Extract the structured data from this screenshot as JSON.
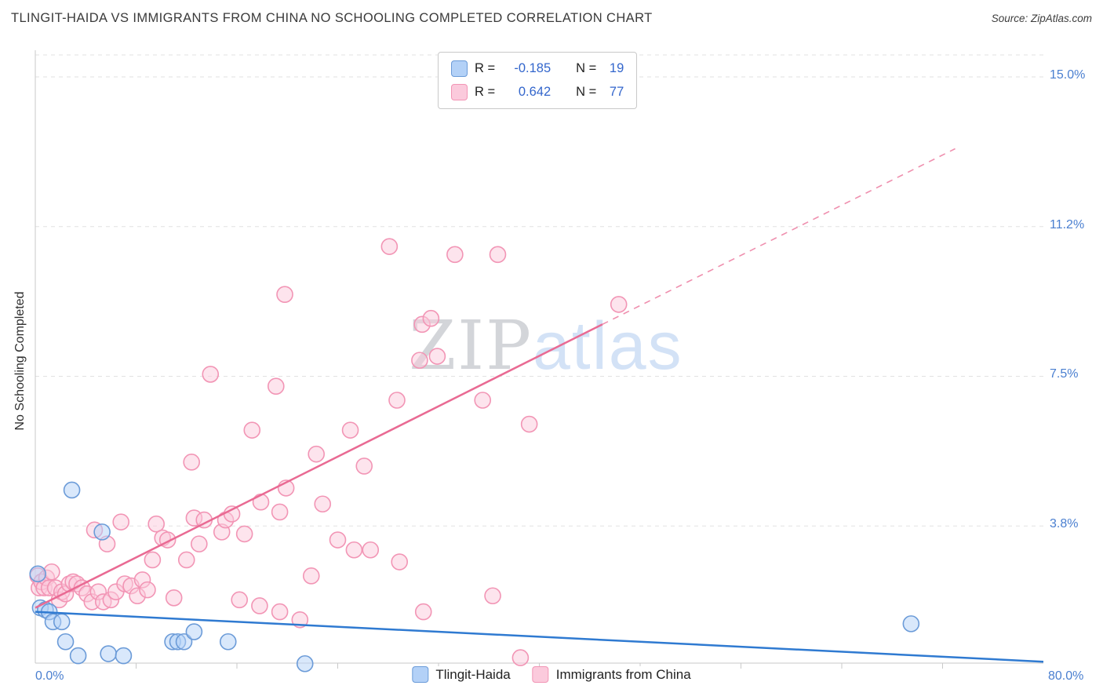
{
  "header": {
    "title": "TLINGIT-HAIDA VS IMMIGRANTS FROM CHINA NO SCHOOLING COMPLETED CORRELATION CHART",
    "source": "Source: ZipAtlas.com"
  },
  "watermark": {
    "zip": "ZIP",
    "atlas": "atlas"
  },
  "y_axis_label": "No Schooling Completed",
  "x_axis": {
    "min_label": "0.0%",
    "max_label": "80.0%"
  },
  "legend_box": {
    "rows": [
      {
        "r_label": "R =",
        "r_value": "-0.185",
        "n_label": "N =",
        "n_value": "19"
      },
      {
        "r_label": "R =",
        "r_value": "0.642",
        "n_label": "N =",
        "n_value": "77"
      }
    ]
  },
  "bottom_legend": {
    "items": [
      {
        "label": "Tlingit-Haida"
      },
      {
        "label": "Immigrants from China"
      }
    ]
  },
  "colors": {
    "accent_text": "#3366cc",
    "axis_tick_label": "#4a7fd0",
    "gridline": "#e2e2e2",
    "axis_line": "#c9c9c9",
    "blue_fill": "#b3d1f7",
    "blue_stroke": "#6b9bd8",
    "pink_fill": "#fbcadc",
    "pink_stroke": "#f295b5",
    "blue_trend": "#2f7ad1",
    "pink_trend": "#e96a93"
  },
  "chart_data": {
    "type": "scatter",
    "title": "TLINGIT-HAIDA VS IMMIGRANTS FROM CHINA NO SCHOOLING COMPLETED CORRELATION CHART",
    "ylabel": "No Schooling Completed",
    "xlim": [
      0,
      80
    ],
    "ylim": [
      0,
      15.5
    ],
    "x_tick_step_pct": 8,
    "grid": "horizontal-dashed",
    "legend_position": "bottom-center",
    "y_gridlines": [
      {
        "pct": 3.75,
        "label": "3.8%"
      },
      {
        "pct": 7.5,
        "label": "7.5%"
      },
      {
        "pct": 11.25,
        "label": "11.2%"
      },
      {
        "pct": 15.0,
        "label": "15.0%"
      }
    ],
    "series": [
      {
        "name": "Tlingit-Haida",
        "R": -0.185,
        "N": 19,
        "fill": "#b3d1f7",
        "stroke": "#6b9bd8",
        "points": [
          [
            0.2,
            2.55
          ],
          [
            0.4,
            1.7
          ],
          [
            0.8,
            1.65
          ],
          [
            1.1,
            1.6
          ],
          [
            1.4,
            1.35
          ],
          [
            2.1,
            1.35
          ],
          [
            2.4,
            0.85
          ],
          [
            2.9,
            4.65
          ],
          [
            3.4,
            0.5
          ],
          [
            5.3,
            3.6
          ],
          [
            5.8,
            0.55
          ],
          [
            7.0,
            0.5
          ],
          [
            10.9,
            0.85
          ],
          [
            11.3,
            0.85
          ],
          [
            11.8,
            0.85
          ],
          [
            12.6,
            1.1
          ],
          [
            15.3,
            0.85
          ],
          [
            21.4,
            0.3
          ],
          [
            69.5,
            1.3
          ]
        ]
      },
      {
        "name": "Immigrants from China",
        "R": 0.642,
        "N": 77,
        "fill": "#fbcadc",
        "stroke": "#f295b5",
        "points": [
          [
            0.2,
            2.5
          ],
          [
            0.3,
            2.2
          ],
          [
            0.5,
            2.35
          ],
          [
            0.7,
            2.2
          ],
          [
            0.9,
            2.45
          ],
          [
            1.1,
            2.2
          ],
          [
            1.3,
            2.6
          ],
          [
            1.6,
            2.2
          ],
          [
            1.9,
            1.9
          ],
          [
            2.1,
            2.1
          ],
          [
            2.4,
            2.05
          ],
          [
            2.7,
            2.3
          ],
          [
            3.0,
            2.35
          ],
          [
            3.3,
            2.3
          ],
          [
            3.7,
            2.2
          ],
          [
            4.1,
            2.05
          ],
          [
            4.5,
            1.85
          ],
          [
            4.7,
            3.65
          ],
          [
            5.0,
            2.1
          ],
          [
            5.4,
            1.85
          ],
          [
            5.7,
            3.3
          ],
          [
            6.0,
            1.9
          ],
          [
            6.4,
            2.1
          ],
          [
            6.8,
            3.85
          ],
          [
            7.1,
            2.3
          ],
          [
            7.6,
            2.25
          ],
          [
            8.1,
            2.0
          ],
          [
            8.5,
            2.4
          ],
          [
            8.9,
            2.15
          ],
          [
            9.3,
            2.9
          ],
          [
            9.6,
            3.8
          ],
          [
            10.1,
            3.45
          ],
          [
            10.5,
            3.4
          ],
          [
            11.0,
            1.95
          ],
          [
            12.0,
            2.9
          ],
          [
            12.4,
            5.35
          ],
          [
            12.6,
            3.95
          ],
          [
            13.0,
            3.3
          ],
          [
            13.4,
            3.9
          ],
          [
            13.9,
            7.55
          ],
          [
            14.8,
            3.6
          ],
          [
            15.1,
            3.9
          ],
          [
            15.6,
            4.05
          ],
          [
            16.2,
            1.9
          ],
          [
            16.6,
            3.55
          ],
          [
            17.2,
            6.15
          ],
          [
            17.8,
            1.75
          ],
          [
            17.9,
            4.35
          ],
          [
            19.1,
            7.25
          ],
          [
            19.4,
            4.1
          ],
          [
            19.4,
            1.6
          ],
          [
            19.8,
            9.55
          ],
          [
            19.9,
            4.7
          ],
          [
            21.0,
            1.4
          ],
          [
            21.9,
            2.5
          ],
          [
            22.3,
            5.55
          ],
          [
            22.8,
            4.3
          ],
          [
            24.0,
            3.4
          ],
          [
            25.0,
            6.15
          ],
          [
            25.3,
            3.15
          ],
          [
            26.1,
            5.25
          ],
          [
            26.6,
            3.15
          ],
          [
            28.1,
            10.75
          ],
          [
            28.7,
            6.9
          ],
          [
            28.9,
            2.85
          ],
          [
            30.5,
            7.9
          ],
          [
            30.7,
            8.8
          ],
          [
            30.8,
            1.6
          ],
          [
            31.4,
            8.95
          ],
          [
            31.9,
            8.0
          ],
          [
            33.3,
            10.55
          ],
          [
            35.5,
            6.9
          ],
          [
            36.3,
            2.0
          ],
          [
            36.7,
            10.55
          ],
          [
            38.5,
            0.45
          ],
          [
            39.2,
            6.3
          ],
          [
            46.3,
            9.3
          ]
        ]
      }
    ],
    "trend_lines": [
      {
        "series": "Tlingit-Haida",
        "color": "#2f7ad1",
        "style": "solid",
        "from": [
          0,
          1.6
        ],
        "to": [
          80,
          0.35
        ]
      },
      {
        "series": "Immigrants from China",
        "color": "#e96a93",
        "style": "solid",
        "from": [
          0,
          1.7
        ],
        "to": [
          45,
          8.8
        ]
      },
      {
        "series": "Immigrants from China",
        "color": "#e96a93",
        "style": "dashed",
        "from": [
          45,
          8.8
        ],
        "to": [
          73,
          13.2
        ]
      }
    ]
  }
}
